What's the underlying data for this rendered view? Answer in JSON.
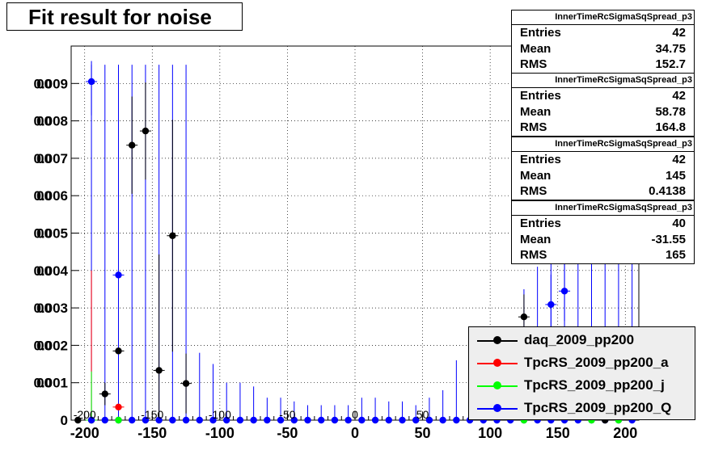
{
  "title": "Fit result for noise",
  "chart_data": {
    "type": "scatter",
    "title": "Fit result for noise",
    "xlim": [
      -210,
      210
    ],
    "ylim": [
      0,
      0.01
    ],
    "x_ticks": [
      -200,
      -150,
      -100,
      -50,
      0,
      50,
      100,
      150,
      200
    ],
    "y_ticks": [
      0,
      0.001,
      0.002,
      0.003,
      0.004,
      0.005,
      0.006,
      0.007,
      0.008,
      0.009
    ],
    "y_tick_labels": [
      "0",
      "0.001",
      "0.002",
      "0.003",
      "0.004",
      "0.005",
      "0.006",
      "0.007",
      "0.008",
      "0.009"
    ],
    "y_tick_overlay_labels": [
      "0",
      "00",
      "00",
      "00",
      "00",
      "00",
      "00",
      "00",
      "00",
      "00"
    ],
    "x_overlay_labels": [
      {
        "x": -200,
        "text": "-200"
      },
      {
        "x": -150,
        "text": "-150"
      },
      {
        "x": -100,
        "text": "-100"
      },
      {
        "x": -50,
        "text": "-50"
      },
      {
        "x": 0,
        "text": "0"
      },
      {
        "x": 50,
        "text": "50"
      }
    ],
    "grid": true,
    "legend_position": "bottom-right",
    "series": [
      {
        "name": "daq_2009_pp200",
        "color": "#000000",
        "points": [
          {
            "x": -185,
            "y": 0.0007,
            "err": 0.0003
          },
          {
            "x": -175,
            "y": 0.00185,
            "err": 0.0006
          },
          {
            "x": -165,
            "y": 0.00735,
            "err": 0.0013
          },
          {
            "x": -155,
            "y": 0.00773,
            "err": 0.0013
          },
          {
            "x": -135,
            "y": 0.00493,
            "err": 0.0031
          },
          {
            "x": -145,
            "y": 0.00133,
            "err": 0.0031
          },
          {
            "x": -125,
            "y": 0.00098,
            "err": 0.0008
          },
          {
            "x": 125,
            "y": 0.00276,
            "err": 0.0006
          }
        ]
      },
      {
        "name": "TpcRS_2009_pp200_a",
        "color": "#ff0000",
        "points": [
          {
            "x": -175,
            "y": 0.00035,
            "err": 0.0002
          },
          {
            "x": -195,
            "y": 0.0,
            "err": 0.004
          }
        ]
      },
      {
        "name": "TpcRS_2009_pp200_j",
        "color": "#00ff00",
        "points": [
          {
            "x": -195,
            "y": 0.0,
            "err": 0.0013
          }
        ]
      },
      {
        "name": "TpcRS_2009_pp200_Q",
        "color": "#0000ff",
        "points": [
          {
            "x": -195,
            "y": 0.00905,
            "err": 0.0009
          },
          {
            "x": -175,
            "y": 0.00388,
            "err": 0.0048
          },
          {
            "x": 145,
            "y": 0.00309,
            "err": 0.0008
          },
          {
            "x": 155,
            "y": 0.00345,
            "err": 0.0008
          }
        ]
      }
    ],
    "baseline_points_x": [
      -195,
      -185,
      -175,
      -165,
      -155,
      -145,
      -135,
      -125,
      -115,
      -105,
      -95,
      -85,
      -75,
      -65,
      -55,
      -45,
      -35,
      -25,
      -15,
      -5,
      5,
      15,
      25,
      35,
      45,
      55,
      65,
      75,
      85,
      95,
      105,
      115,
      125,
      135,
      145,
      155,
      165,
      175,
      185,
      195,
      205
    ],
    "blue_error_bar_heights": [
      0.0095,
      0.0095,
      0.0095,
      0.0095,
      0.0095,
      0.0095,
      0.0095,
      0.0095,
      0.0018,
      0.0015,
      0.001,
      0.001,
      0.0009,
      0.0006,
      0.0006,
      0.0005,
      0.0004,
      0.0004,
      0.0004,
      0.0004,
      0.0006,
      0.0006,
      0.0005,
      0.0005,
      0.0004,
      0.0006,
      0.0008,
      0.0016,
      0.0011,
      0.0018,
      0.0021,
      0.0025,
      0.0035,
      0.0041,
      0.0045,
      0.0045,
      0.0045,
      0.0045,
      0.0045,
      0.0045,
      0.0045
    ]
  },
  "stats_boxes": [
    {
      "header": "InnerTimeRcSigmaSqSpread_p3",
      "rows": [
        {
          "k": "Entries",
          "v": "42"
        },
        {
          "k": "Mean",
          "v": "34.75"
        },
        {
          "k": "RMS",
          "v": "152.7"
        }
      ]
    },
    {
      "header": "InnerTimeRcSigmaSqSpread_p3",
      "rows": [
        {
          "k": "Entries",
          "v": "42"
        },
        {
          "k": "Mean",
          "v": "58.78"
        },
        {
          "k": "RMS",
          "v": "164.8"
        }
      ]
    },
    {
      "header": "InnerTimeRcSigmaSqSpread_p3",
      "rows": [
        {
          "k": "Entries",
          "v": "42"
        },
        {
          "k": "Mean",
          "v": "145"
        },
        {
          "k": "RMS",
          "v": "0.4138"
        }
      ]
    },
    {
      "header": "InnerTimeRcSigmaSqSpread_p3",
      "rows": [
        {
          "k": "Entries",
          "v": "40"
        },
        {
          "k": "Mean",
          "v": "-31.55"
        },
        {
          "k": "RMS",
          "v": "165"
        }
      ]
    }
  ],
  "legend": [
    {
      "label": "daq_2009_pp200",
      "color": "#000000"
    },
    {
      "label": "TpcRS_2009_pp200_a",
      "color": "#ff0000"
    },
    {
      "label": "TpcRS_2009_pp200_j",
      "color": "#00ff00"
    },
    {
      "label": "TpcRS_2009_pp200_Q",
      "color": "#0000ff"
    }
  ]
}
